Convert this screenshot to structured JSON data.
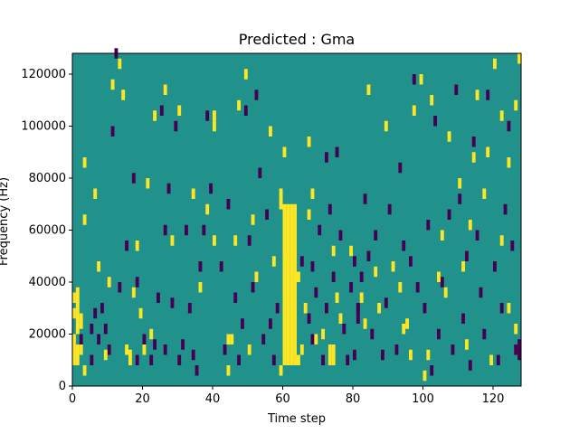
{
  "chart_data": {
    "type": "heatmap",
    "title": "Predicted : Gma",
    "xlabel": "Time step",
    "ylabel": "Frequency (Hz)",
    "xlim": [
      0,
      128
    ],
    "ylim": [
      0,
      128000
    ],
    "x_ticks": [
      0,
      20,
      40,
      60,
      80,
      100,
      120
    ],
    "y_ticks": [
      0,
      20000,
      40000,
      60000,
      80000,
      100000,
      120000
    ],
    "colormap": {
      "low": "#440154",
      "mid": "#21918c",
      "high": "#fde725"
    },
    "background_value": "mid",
    "high_cells": [
      [
        0,
        8000,
        5000
      ],
      [
        0,
        12000,
        4000
      ],
      [
        0,
        16000,
        4000
      ],
      [
        0,
        26000,
        4000
      ],
      [
        0,
        32000,
        4000
      ],
      [
        1,
        8000,
        8000
      ],
      [
        1,
        20000,
        12000
      ],
      [
        1,
        32000,
        6000
      ],
      [
        2,
        12000,
        4000
      ],
      [
        2,
        22000,
        6000
      ],
      [
        3,
        4000,
        4000
      ],
      [
        3,
        62000,
        4000
      ],
      [
        3,
        84000,
        4000
      ],
      [
        6,
        72000,
        4000
      ],
      [
        7,
        44000,
        4000
      ],
      [
        9,
        10000,
        4000
      ],
      [
        10,
        38000,
        4000
      ],
      [
        11,
        114000,
        4000
      ],
      [
        13,
        122000,
        4000
      ],
      [
        14,
        110000,
        4000
      ],
      [
        15,
        12000,
        4000
      ],
      [
        16,
        8000,
        6000
      ],
      [
        17,
        34000,
        4000
      ],
      [
        18,
        52000,
        4000
      ],
      [
        19,
        26000,
        4000
      ],
      [
        20,
        12000,
        4000
      ],
      [
        21,
        76000,
        4000
      ],
      [
        22,
        18000,
        4000
      ],
      [
        23,
        102000,
        4000
      ],
      [
        26,
        112000,
        4000
      ],
      [
        28,
        54000,
        4000
      ],
      [
        30,
        104000,
        4000
      ],
      [
        34,
        72000,
        4000
      ],
      [
        36,
        36000,
        4000
      ],
      [
        38,
        66000,
        4000
      ],
      [
        40,
        98000,
        4000
      ],
      [
        40,
        102000,
        4000
      ],
      [
        40,
        54000,
        4000
      ],
      [
        44,
        4000,
        4000
      ],
      [
        44,
        16000,
        4000
      ],
      [
        45,
        16000,
        4000
      ],
      [
        46,
        54000,
        4000
      ],
      [
        47,
        106000,
        4000
      ],
      [
        49,
        118000,
        4000
      ],
      [
        50,
        12000,
        4000
      ],
      [
        51,
        62000,
        4000
      ],
      [
        52,
        40000,
        4000
      ],
      [
        56,
        96000,
        4000
      ],
      [
        57,
        46000,
        4000
      ],
      [
        59,
        4000,
        4000
      ],
      [
        59,
        68000,
        8000
      ],
      [
        60,
        48000,
        4000
      ],
      [
        60,
        88000,
        4000
      ],
      [
        60,
        8000,
        62000
      ],
      [
        61,
        8000,
        62000
      ],
      [
        62,
        8000,
        62000
      ],
      [
        63,
        8000,
        62000
      ],
      [
        64,
        8000,
        4000
      ],
      [
        64,
        40000,
        4000
      ],
      [
        65,
        12000,
        4000
      ],
      [
        66,
        28000,
        4000
      ],
      [
        67,
        64000,
        4000
      ],
      [
        67,
        92000,
        4000
      ],
      [
        68,
        72000,
        4000
      ],
      [
        69,
        16000,
        4000
      ],
      [
        71,
        18000,
        4000
      ],
      [
        73,
        8000,
        8000
      ],
      [
        74,
        8000,
        8000
      ],
      [
        74,
        50000,
        4000
      ],
      [
        75,
        32000,
        4000
      ],
      [
        76,
        24000,
        4000
      ],
      [
        79,
        50000,
        4000
      ],
      [
        82,
        32000,
        4000
      ],
      [
        83,
        22000,
        4000
      ],
      [
        84,
        112000,
        4000
      ],
      [
        86,
        42000,
        4000
      ],
      [
        87,
        28000,
        4000
      ],
      [
        89,
        98000,
        4000
      ],
      [
        91,
        44000,
        4000
      ],
      [
        93,
        36000,
        4000
      ],
      [
        94,
        20000,
        4000
      ],
      [
        95,
        22000,
        4000
      ],
      [
        96,
        10000,
        4000
      ],
      [
        97,
        104000,
        4000
      ],
      [
        99,
        116000,
        4000
      ],
      [
        100,
        2000,
        4000
      ],
      [
        101,
        10000,
        4000
      ],
      [
        102,
        108000,
        4000
      ],
      [
        104,
        40000,
        4000
      ],
      [
        105,
        56000,
        4000
      ],
      [
        106,
        34000,
        4000
      ],
      [
        107,
        94000,
        4000
      ],
      [
        110,
        76000,
        4000
      ],
      [
        111,
        44000,
        4000
      ],
      [
        112,
        14000,
        4000
      ],
      [
        113,
        60000,
        4000
      ],
      [
        114,
        86000,
        4000
      ],
      [
        115,
        110000,
        4000
      ],
      [
        117,
        72000,
        4000
      ],
      [
        118,
        88000,
        4000
      ],
      [
        119,
        8000,
        4000
      ],
      [
        120,
        122000,
        4000
      ],
      [
        122,
        54000,
        4000
      ],
      [
        122,
        102000,
        4000
      ],
      [
        124,
        28000,
        4000
      ],
      [
        124,
        84000,
        4000
      ],
      [
        126,
        20000,
        4000
      ],
      [
        126,
        106000,
        4000
      ],
      [
        127,
        124000,
        4000
      ]
    ],
    "low_cells": [
      [
        2,
        16000,
        4000
      ],
      [
        5,
        8000,
        4000
      ],
      [
        5,
        20000,
        4000
      ],
      [
        6,
        26000,
        4000
      ],
      [
        7,
        16000,
        4000
      ],
      [
        8,
        28000,
        4000
      ],
      [
        9,
        20000,
        4000
      ],
      [
        10,
        12000,
        4000
      ],
      [
        11,
        96000,
        4000
      ],
      [
        12,
        126000,
        4000
      ],
      [
        13,
        36000,
        4000
      ],
      [
        15,
        52000,
        4000
      ],
      [
        17,
        78000,
        4000
      ],
      [
        18,
        8000,
        4000
      ],
      [
        18,
        38000,
        4000
      ],
      [
        20,
        16000,
        4000
      ],
      [
        22,
        8000,
        4000
      ],
      [
        23,
        14000,
        4000
      ],
      [
        24,
        32000,
        4000
      ],
      [
        25,
        104000,
        4000
      ],
      [
        26,
        12000,
        4000
      ],
      [
        26,
        58000,
        4000
      ],
      [
        27,
        74000,
        4000
      ],
      [
        28,
        30000,
        4000
      ],
      [
        29,
        98000,
        4000
      ],
      [
        30,
        8000,
        4000
      ],
      [
        31,
        14000,
        4000
      ],
      [
        32,
        58000,
        4000
      ],
      [
        33,
        28000,
        4000
      ],
      [
        34,
        10000,
        4000
      ],
      [
        35,
        4000,
        4000
      ],
      [
        36,
        44000,
        4000
      ],
      [
        37,
        58000,
        4000
      ],
      [
        38,
        102000,
        4000
      ],
      [
        39,
        74000,
        4000
      ],
      [
        42,
        44000,
        4000
      ],
      [
        43,
        12000,
        4000
      ],
      [
        44,
        68000,
        4000
      ],
      [
        46,
        32000,
        4000
      ],
      [
        47,
        8000,
        4000
      ],
      [
        48,
        22000,
        4000
      ],
      [
        49,
        104000,
        4000
      ],
      [
        50,
        54000,
        4000
      ],
      [
        51,
        36000,
        4000
      ],
      [
        52,
        110000,
        4000
      ],
      [
        53,
        80000,
        4000
      ],
      [
        54,
        16000,
        4000
      ],
      [
        55,
        64000,
        4000
      ],
      [
        56,
        22000,
        4000
      ],
      [
        57,
        8000,
        4000
      ],
      [
        58,
        28000,
        4000
      ],
      [
        65,
        46000,
        4000
      ],
      [
        67,
        24000,
        4000
      ],
      [
        68,
        16000,
        4000
      ],
      [
        68,
        44000,
        4000
      ],
      [
        69,
        34000,
        4000
      ],
      [
        70,
        58000,
        4000
      ],
      [
        71,
        8000,
        4000
      ],
      [
        72,
        86000,
        4000
      ],
      [
        72,
        28000,
        4000
      ],
      [
        73,
        66000,
        4000
      ],
      [
        74,
        40000,
        4000
      ],
      [
        75,
        88000,
        4000
      ],
      [
        76,
        56000,
        4000
      ],
      [
        77,
        20000,
        4000
      ],
      [
        78,
        8000,
        4000
      ],
      [
        79,
        36000,
        4000
      ],
      [
        80,
        10000,
        4000
      ],
      [
        80,
        46000,
        4000
      ],
      [
        81,
        24000,
        8000
      ],
      [
        81,
        28000,
        4000
      ],
      [
        82,
        40000,
        4000
      ],
      [
        83,
        70000,
        4000
      ],
      [
        84,
        48000,
        4000
      ],
      [
        85,
        18000,
        4000
      ],
      [
        86,
        56000,
        4000
      ],
      [
        88,
        10000,
        4000
      ],
      [
        89,
        30000,
        4000
      ],
      [
        90,
        66000,
        4000
      ],
      [
        92,
        12000,
        4000
      ],
      [
        93,
        82000,
        4000
      ],
      [
        94,
        52000,
        4000
      ],
      [
        96,
        46000,
        4000
      ],
      [
        97,
        116000,
        4000
      ],
      [
        98,
        36000,
        4000
      ],
      [
        100,
        28000,
        4000
      ],
      [
        101,
        60000,
        4000
      ],
      [
        102,
        4000,
        4000
      ],
      [
        103,
        100000,
        4000
      ],
      [
        104,
        18000,
        4000
      ],
      [
        105,
        38000,
        4000
      ],
      [
        107,
        64000,
        4000
      ],
      [
        108,
        12000,
        4000
      ],
      [
        109,
        112000,
        4000
      ],
      [
        110,
        70000,
        4000
      ],
      [
        111,
        24000,
        4000
      ],
      [
        112,
        48000,
        4000
      ],
      [
        113,
        6000,
        4000
      ],
      [
        114,
        92000,
        4000
      ],
      [
        115,
        56000,
        4000
      ],
      [
        116,
        34000,
        4000
      ],
      [
        117,
        18000,
        4000
      ],
      [
        118,
        110000,
        4000
      ],
      [
        120,
        44000,
        4000
      ],
      [
        121,
        8000,
        4000
      ],
      [
        122,
        28000,
        4000
      ],
      [
        123,
        66000,
        4000
      ],
      [
        124,
        98000,
        4000
      ],
      [
        125,
        52000,
        4000
      ],
      [
        126,
        12000,
        4000
      ],
      [
        127,
        10000,
        8000
      ]
    ]
  }
}
